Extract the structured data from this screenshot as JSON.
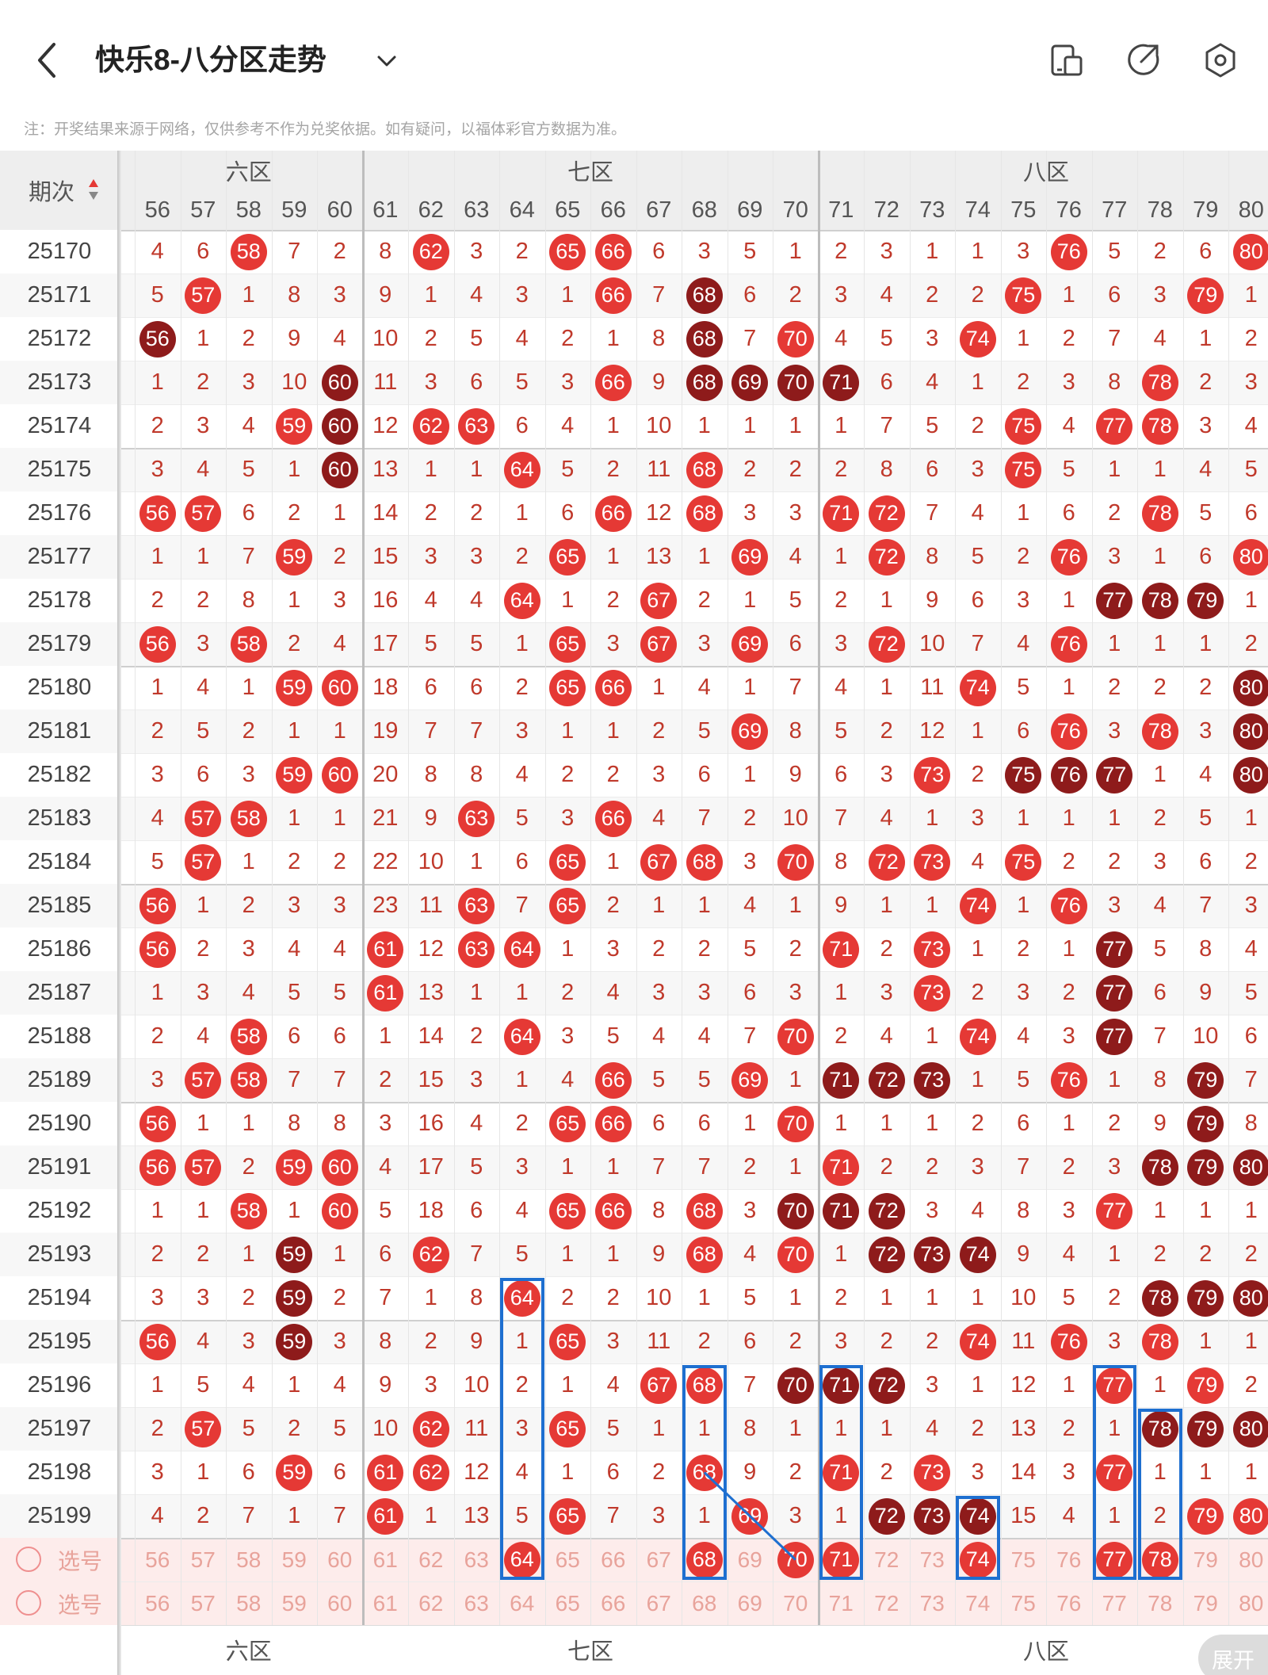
{
  "header": {
    "title": "快乐8-八分区走势",
    "note": "注：开奖结果来源于网络，仅供参考不作为兑奖依据。如有疑问，以福体彩官方数据为准。"
  },
  "grid": {
    "issue_header": "期次",
    "zones": [
      {
        "label": "六区",
        "shown": "六区"
      },
      {
        "label": "七区",
        "shown": "七区"
      },
      {
        "label": "八区",
        "shown": "八区"
      }
    ],
    "columns": [
      56,
      57,
      58,
      59,
      60,
      61,
      62,
      63,
      64,
      65,
      66,
      67,
      68,
      69,
      70,
      71,
      72,
      73,
      74,
      75,
      76,
      77,
      78,
      79,
      80
    ],
    "rows": [
      {
        "issue": "25170",
        "cells": [
          "4",
          "6",
          "b58",
          "7",
          "2",
          "8",
          "b62",
          "3",
          "2",
          "b65",
          "b66",
          "6",
          "3",
          "5",
          "1",
          "2",
          "3",
          "1",
          "1",
          "3",
          "b76",
          "5",
          "2",
          "6",
          "b80"
        ]
      },
      {
        "issue": "25171",
        "cells": [
          "5",
          "b57",
          "1",
          "8",
          "3",
          "9",
          "1",
          "4",
          "3",
          "1",
          "b66",
          "7",
          "d68",
          "6",
          "2",
          "3",
          "4",
          "2",
          "2",
          "b75",
          "1",
          "6",
          "3",
          "b79",
          "1"
        ]
      },
      {
        "issue": "25172",
        "cells": [
          "d56",
          "1",
          "2",
          "9",
          "4",
          "10",
          "2",
          "5",
          "4",
          "2",
          "1",
          "8",
          "d68",
          "7",
          "b70",
          "4",
          "5",
          "3",
          "b74",
          "1",
          "2",
          "7",
          "4",
          "1",
          "2"
        ]
      },
      {
        "issue": "25173",
        "cells": [
          "1",
          "2",
          "3",
          "10",
          "d60",
          "11",
          "3",
          "6",
          "5",
          "3",
          "b66",
          "9",
          "d68",
          "d69",
          "d70",
          "d71",
          "6",
          "4",
          "1",
          "2",
          "3",
          "8",
          "b78",
          "2",
          "3"
        ]
      },
      {
        "issue": "25174",
        "cells": [
          "2",
          "3",
          "4",
          "b59",
          "d60",
          "12",
          "b62",
          "b63",
          "6",
          "4",
          "1",
          "10",
          "1",
          "1",
          "1",
          "1",
          "7",
          "5",
          "2",
          "b75",
          "4",
          "b77",
          "b78",
          "3",
          "4"
        ]
      },
      {
        "issue": "25175",
        "cells": [
          "3",
          "4",
          "5",
          "1",
          "d60",
          "13",
          "1",
          "1",
          "b64",
          "5",
          "2",
          "11",
          "b68",
          "2",
          "2",
          "2",
          "8",
          "6",
          "3",
          "b75",
          "5",
          "1",
          "1",
          "4",
          "5"
        ]
      },
      {
        "issue": "25176",
        "cells": [
          "b56",
          "b57",
          "6",
          "2",
          "1",
          "14",
          "2",
          "2",
          "1",
          "6",
          "b66",
          "12",
          "b68",
          "3",
          "3",
          "b71",
          "b72",
          "7",
          "4",
          "1",
          "6",
          "2",
          "b78",
          "5",
          "6"
        ]
      },
      {
        "issue": "25177",
        "cells": [
          "1",
          "1",
          "7",
          "b59",
          "2",
          "15",
          "3",
          "3",
          "2",
          "b65",
          "1",
          "13",
          "1",
          "b69",
          "4",
          "1",
          "b72",
          "8",
          "5",
          "2",
          "b76",
          "3",
          "1",
          "6",
          "b80"
        ]
      },
      {
        "issue": "25178",
        "cells": [
          "2",
          "2",
          "8",
          "1",
          "3",
          "16",
          "4",
          "4",
          "b64",
          "1",
          "2",
          "b67",
          "2",
          "1",
          "5",
          "2",
          "1",
          "9",
          "6",
          "3",
          "1",
          "d77",
          "d78",
          "d79",
          "1"
        ]
      },
      {
        "issue": "25179",
        "cells": [
          "b56",
          "3",
          "b58",
          "2",
          "4",
          "17",
          "5",
          "5",
          "1",
          "b65",
          "3",
          "b67",
          "3",
          "b69",
          "6",
          "3",
          "b72",
          "10",
          "7",
          "4",
          "b76",
          "1",
          "1",
          "1",
          "2"
        ]
      },
      {
        "issue": "25180",
        "cells": [
          "1",
          "4",
          "1",
          "b59",
          "b60",
          "18",
          "6",
          "6",
          "2",
          "b65",
          "b66",
          "1",
          "4",
          "1",
          "7",
          "4",
          "1",
          "11",
          "b74",
          "5",
          "1",
          "2",
          "2",
          "2",
          "d80"
        ]
      },
      {
        "issue": "25181",
        "cells": [
          "2",
          "5",
          "2",
          "1",
          "1",
          "19",
          "7",
          "7",
          "3",
          "1",
          "1",
          "2",
          "5",
          "b69",
          "8",
          "5",
          "2",
          "12",
          "1",
          "6",
          "b76",
          "3",
          "b78",
          "3",
          "d80"
        ]
      },
      {
        "issue": "25182",
        "cells": [
          "3",
          "6",
          "3",
          "b59",
          "b60",
          "20",
          "8",
          "8",
          "4",
          "2",
          "2",
          "3",
          "6",
          "1",
          "9",
          "6",
          "3",
          "b73",
          "2",
          "d75",
          "d76",
          "d77",
          "1",
          "4",
          "d80"
        ]
      },
      {
        "issue": "25183",
        "cells": [
          "4",
          "b57",
          "b58",
          "1",
          "1",
          "21",
          "9",
          "b63",
          "5",
          "3",
          "b66",
          "4",
          "7",
          "2",
          "10",
          "7",
          "4",
          "1",
          "3",
          "1",
          "1",
          "1",
          "2",
          "5",
          "1"
        ]
      },
      {
        "issue": "25184",
        "cells": [
          "5",
          "b57",
          "1",
          "2",
          "2",
          "22",
          "10",
          "1",
          "6",
          "b65",
          "1",
          "b67",
          "b68",
          "3",
          "b70",
          "8",
          "b72",
          "b73",
          "4",
          "b75",
          "2",
          "2",
          "3",
          "6",
          "2"
        ]
      },
      {
        "issue": "25185",
        "cells": [
          "b56",
          "1",
          "2",
          "3",
          "3",
          "23",
          "11",
          "b63",
          "7",
          "b65",
          "2",
          "1",
          "1",
          "4",
          "1",
          "9",
          "1",
          "1",
          "b74",
          "1",
          "b76",
          "3",
          "4",
          "7",
          "3"
        ]
      },
      {
        "issue": "25186",
        "cells": [
          "b56",
          "2",
          "3",
          "4",
          "4",
          "b61",
          "12",
          "b63",
          "b64",
          "1",
          "3",
          "2",
          "2",
          "5",
          "2",
          "b71",
          "2",
          "b73",
          "1",
          "2",
          "1",
          "d77",
          "5",
          "8",
          "4"
        ]
      },
      {
        "issue": "25187",
        "cells": [
          "1",
          "3",
          "4",
          "5",
          "5",
          "b61",
          "13",
          "1",
          "1",
          "2",
          "4",
          "3",
          "3",
          "6",
          "3",
          "1",
          "3",
          "b73",
          "2",
          "3",
          "2",
          "d77",
          "6",
          "9",
          "5"
        ]
      },
      {
        "issue": "25188",
        "cells": [
          "2",
          "4",
          "b58",
          "6",
          "6",
          "1",
          "14",
          "2",
          "b64",
          "3",
          "5",
          "4",
          "4",
          "7",
          "b70",
          "2",
          "4",
          "1",
          "b74",
          "4",
          "3",
          "d77",
          "7",
          "10",
          "6"
        ]
      },
      {
        "issue": "25189",
        "cells": [
          "3",
          "b57",
          "b58",
          "7",
          "7",
          "2",
          "15",
          "3",
          "1",
          "4",
          "b66",
          "5",
          "5",
          "b69",
          "1",
          "d71",
          "d72",
          "d73",
          "1",
          "5",
          "b76",
          "1",
          "8",
          "d79",
          "7"
        ]
      },
      {
        "issue": "25190",
        "cells": [
          "b56",
          "1",
          "1",
          "8",
          "8",
          "3",
          "16",
          "4",
          "2",
          "b65",
          "b66",
          "6",
          "6",
          "1",
          "b70",
          "1",
          "1",
          "1",
          "2",
          "6",
          "1",
          "2",
          "9",
          "d79",
          "8"
        ]
      },
      {
        "issue": "25191",
        "cells": [
          "b56",
          "b57",
          "2",
          "b59",
          "b60",
          "4",
          "17",
          "5",
          "3",
          "1",
          "1",
          "7",
          "7",
          "2",
          "1",
          "b71",
          "2",
          "2",
          "3",
          "7",
          "2",
          "3",
          "d78",
          "d79",
          "d80"
        ]
      },
      {
        "issue": "25192",
        "cells": [
          "1",
          "1",
          "b58",
          "1",
          "b60",
          "5",
          "18",
          "6",
          "4",
          "b65",
          "b66",
          "8",
          "b68",
          "3",
          "d70",
          "d71",
          "d72",
          "3",
          "4",
          "8",
          "3",
          "b77",
          "1",
          "1",
          "1"
        ]
      },
      {
        "issue": "25193",
        "cells": [
          "2",
          "2",
          "1",
          "d59",
          "1",
          "6",
          "b62",
          "7",
          "5",
          "1",
          "1",
          "9",
          "b68",
          "4",
          "b70",
          "1",
          "d72",
          "d73",
          "d74",
          "9",
          "4",
          "1",
          "2",
          "2",
          "2"
        ]
      },
      {
        "issue": "25194",
        "cells": [
          "3",
          "3",
          "2",
          "d59",
          "2",
          "7",
          "1",
          "8",
          "b64",
          "2",
          "2",
          "10",
          "1",
          "5",
          "1",
          "2",
          "1",
          "1",
          "1",
          "10",
          "5",
          "2",
          "d78",
          "d79",
          "d80"
        ]
      },
      {
        "issue": "25195",
        "cells": [
          "b56",
          "4",
          "3",
          "d59",
          "3",
          "8",
          "2",
          "9",
          "1",
          "b65",
          "3",
          "11",
          "2",
          "6",
          "2",
          "3",
          "2",
          "2",
          "b74",
          "11",
          "b76",
          "3",
          "b78",
          "1",
          "1"
        ]
      },
      {
        "issue": "25196",
        "cells": [
          "1",
          "5",
          "4",
          "1",
          "4",
          "9",
          "3",
          "10",
          "2",
          "1",
          "4",
          "b67",
          "b68",
          "7",
          "d70",
          "d71",
          "d72",
          "3",
          "1",
          "12",
          "1",
          "b77",
          "1",
          "b79",
          "2"
        ]
      },
      {
        "issue": "25197",
        "cells": [
          "2",
          "b57",
          "5",
          "2",
          "5",
          "10",
          "b62",
          "11",
          "3",
          "b65",
          "5",
          "1",
          "1",
          "8",
          "1",
          "1",
          "1",
          "4",
          "2",
          "13",
          "2",
          "1",
          "d78",
          "d79",
          "d80"
        ]
      },
      {
        "issue": "25198",
        "cells": [
          "3",
          "1",
          "6",
          "b59",
          "6",
          "b61",
          "b62",
          "12",
          "4",
          "1",
          "6",
          "2",
          "b68",
          "9",
          "2",
          "b71",
          "2",
          "b73",
          "3",
          "14",
          "3",
          "b77",
          "1",
          "1",
          "1"
        ]
      },
      {
        "issue": "25199",
        "cells": [
          "4",
          "2",
          "7",
          "1",
          "7",
          "b61",
          "1",
          "13",
          "5",
          "b65",
          "7",
          "3",
          "1",
          "b69",
          "3",
          "1",
          "d72",
          "d73",
          "d74",
          "15",
          "4",
          "1",
          "2",
          "b79",
          "b80"
        ]
      }
    ],
    "select_row_1": {
      "label": "选号",
      "picked": [
        64,
        68,
        70,
        71,
        74,
        77,
        78
      ]
    },
    "select_row_2": {
      "label": "选号"
    },
    "expand_label": "展开"
  },
  "colors": {
    "ball_red": "#e53935",
    "ball_dark": "#8e1b1b",
    "box": "#1e6fd0",
    "text_red": "#c0392b"
  },
  "icons": [
    "back-arrow-icon",
    "dropdown-chevron-icon",
    "phone-layout-icon",
    "share-icon",
    "settings-icon",
    "sort-arrows-icon"
  ]
}
